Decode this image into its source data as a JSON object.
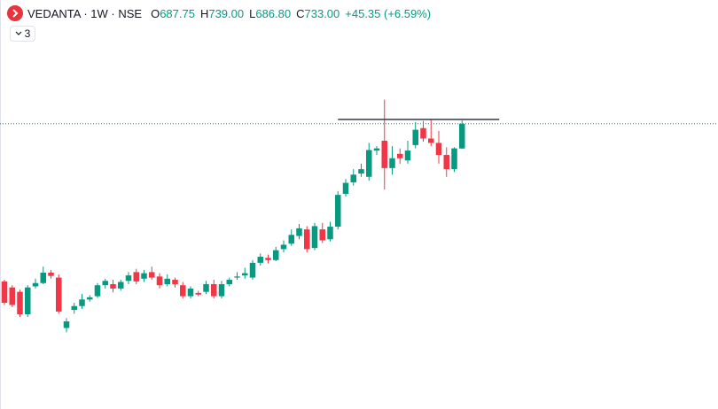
{
  "chart_data": {
    "type": "candlestick",
    "header": {
      "symbol": "VEDANTA · 1W · NSE",
      "open_label": "O",
      "open": "687.75",
      "high_label": "H",
      "high": "739.00",
      "low_label": "L",
      "low": "686.80",
      "close_label": "C",
      "close": "733.00",
      "change": "+45.35 (+6.59%)",
      "indicators": "3"
    },
    "up_color": "#089981",
    "down_color": "#f23645",
    "ylim": [
      212,
      959
    ],
    "open": [
      445,
      434,
      426,
      385,
      436,
      442,
      461,
      452,
      360,
      393,
      400,
      412,
      418,
      438,
      440,
      432,
      446,
      462,
      450,
      462,
      454,
      440,
      448,
      438,
      418,
      424,
      426,
      440,
      418,
      440,
      452,
      456,
      452,
      479,
      488,
      484,
      504,
      514,
      528,
      540,
      506,
      540,
      522,
      545,
      605,
      626,
      642,
      636,
      684,
      702,
      652,
      678,
      666,
      694,
      725,
      706,
      698,
      676,
      650,
      687.75
    ],
    "high": [
      448,
      438,
      430,
      438,
      450,
      472,
      466,
      458,
      378,
      406,
      422,
      420,
      442,
      450,
      448,
      448,
      462,
      468,
      466,
      472,
      460,
      458,
      452,
      444,
      436,
      428,
      446,
      448,
      446,
      452,
      462,
      470,
      484,
      496,
      494,
      508,
      520,
      540,
      550,
      546,
      552,
      552,
      554,
      610,
      632,
      650,
      660,
      698,
      692,
      777,
      692,
      688,
      702,
      736,
      738,
      741,
      720,
      690,
      690,
      739
    ],
    "low": [
      402,
      398,
      380,
      380,
      432,
      440,
      450,
      386,
      352,
      386,
      395,
      408,
      415,
      432,
      425,
      428,
      440,
      440,
      444,
      448,
      432,
      436,
      434,
      414,
      414,
      418,
      422,
      414,
      414,
      436,
      448,
      450,
      448,
      474,
      478,
      482,
      498,
      510,
      522,
      498,
      502,
      515,
      518,
      540,
      600,
      620,
      636,
      629,
      676,
      613,
      640,
      660,
      660,
      688,
      700,
      692,
      660,
      636,
      645,
      686.8
    ],
    "close": [
      406,
      402,
      385,
      434,
      442,
      461,
      455,
      390,
      372,
      400,
      412,
      416,
      438,
      446,
      432,
      444,
      456,
      445,
      460,
      452,
      438,
      450,
      440,
      418,
      432,
      421,
      440,
      418,
      440,
      448,
      454,
      460,
      479,
      490,
      484,
      502,
      512,
      530,
      542,
      504,
      546,
      520,
      545,
      603,
      625,
      640,
      650,
      685,
      688,
      652,
      670,
      670,
      684,
      722,
      706,
      698,
      676,
      650,
      688,
      733
    ],
    "hline": {
      "value": 741,
      "color": "#363a45"
    },
    "last_price_line": {
      "value": 733,
      "color": "#089981"
    }
  }
}
